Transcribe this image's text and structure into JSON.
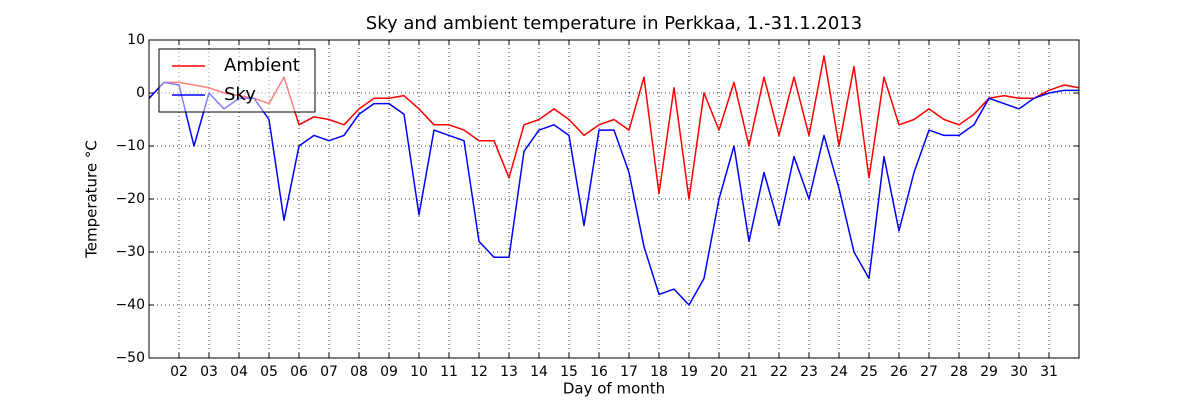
{
  "chart_data": {
    "type": "line",
    "title": "Sky and ambient temperature in Perkkaa, 1.-31.1.2013",
    "x_label": "Day of month",
    "y_label": "Temperature °C",
    "x": [
      1,
      1.5,
      2,
      2.5,
      3,
      3.5,
      4,
      4.5,
      5,
      5.5,
      6,
      6.5,
      7,
      7.5,
      8,
      8.5,
      9,
      9.5,
      10,
      10.5,
      11,
      11.5,
      12,
      12.5,
      13,
      13.5,
      14,
      14.5,
      15,
      15.5,
      16,
      16.5,
      17,
      17.5,
      18,
      18.5,
      19,
      19.5,
      20,
      20.5,
      21,
      21.5,
      22,
      22.5,
      23,
      23.5,
      24,
      24.5,
      25,
      25.5,
      26,
      26.5,
      27,
      27.5,
      28,
      28.5,
      29,
      29.5,
      30,
      30.5,
      31,
      31.5,
      32
    ],
    "series": [
      {
        "name": "Ambient",
        "color": "#ff0000",
        "values": [
          -1,
          2,
          2,
          1.5,
          1,
          0,
          -0.5,
          -1,
          -2,
          3,
          -6,
          -4.5,
          -5,
          -6,
          -3,
          -1,
          -1,
          -0.5,
          -3,
          -6,
          -6,
          -7,
          -9,
          -9,
          -16,
          -6,
          -5,
          -3,
          -5,
          -8,
          -6,
          -5,
          -7,
          3,
          -19,
          1,
          -20,
          0,
          -7,
          2,
          -10,
          3,
          -8,
          3,
          -8,
          7,
          -10,
          5,
          -16,
          3,
          -6,
          -5,
          -3,
          -5,
          -6,
          -4,
          -1,
          -0.5,
          -1,
          -1,
          0.5,
          1.5,
          1
        ]
      },
      {
        "name": "Sky",
        "color": "#0000ff",
        "values": [
          -1,
          2,
          1.5,
          -10,
          0,
          -3,
          -1,
          -1,
          -5,
          -24,
          -10,
          -8,
          -9,
          -8,
          -4,
          -2,
          -2,
          -4,
          -23,
          -7,
          -8,
          -9,
          -28,
          -31,
          -31,
          -11,
          -7,
          -6,
          -8,
          -25,
          -7,
          -7,
          -15,
          -29,
          -38,
          -37,
          -40,
          -35,
          -20,
          -10,
          -28,
          -15,
          -25,
          -12,
          -20,
          -8,
          -18,
          -30,
          -35,
          -12,
          -26,
          -15,
          -7,
          -8,
          -8,
          -6,
          -1,
          -2,
          -3,
          -1,
          0,
          0.5,
          0.5
        ]
      }
    ],
    "xlim": [
      1,
      32
    ],
    "ylim": [
      -50,
      10
    ],
    "xticks": [
      {
        "value": 2,
        "label": "02"
      },
      {
        "value": 3,
        "label": "03"
      },
      {
        "value": 4,
        "label": "04"
      },
      {
        "value": 5,
        "label": "05"
      },
      {
        "value": 6,
        "label": "06"
      },
      {
        "value": 7,
        "label": "07"
      },
      {
        "value": 8,
        "label": "08"
      },
      {
        "value": 9,
        "label": "09"
      },
      10,
      11,
      12,
      13,
      14,
      15,
      16,
      17,
      18,
      19,
      20,
      21,
      22,
      23,
      24,
      25,
      26,
      27,
      28,
      29,
      30,
      31
    ],
    "yticks": [
      {
        "value": -50,
        "label": "−50"
      },
      {
        "value": -40,
        "label": "−40"
      },
      {
        "value": -30,
        "label": "−30"
      },
      {
        "value": -20,
        "label": "−20"
      },
      {
        "value": -10,
        "label": "−10"
      },
      0,
      10
    ],
    "grid": true,
    "legend": "upper left"
  }
}
